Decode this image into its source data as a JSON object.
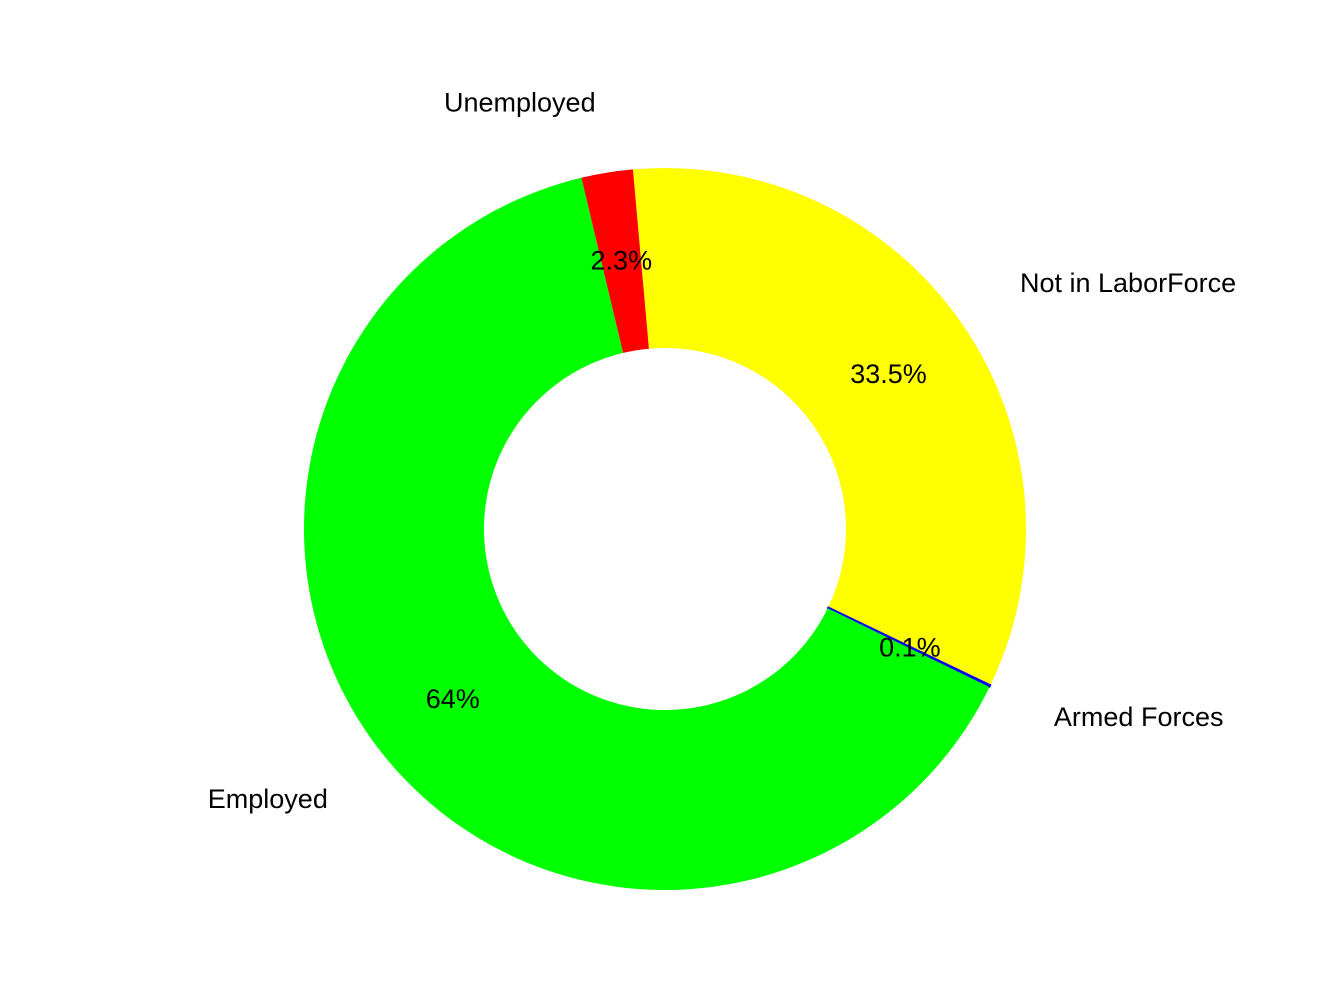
{
  "chart_data": {
    "type": "pie",
    "donut": true,
    "categories": [
      "Not in LaborForce",
      "Armed Forces",
      "Employed",
      "Unemployed"
    ],
    "values": [
      33.5,
      0.1,
      64,
      2.3
    ],
    "value_labels": [
      "33.5%",
      "0.1%",
      "64%",
      "2.3%"
    ],
    "colors": [
      "#ffff00",
      "#0000ff",
      "#00ff00",
      "#ff0000"
    ],
    "legend": "none"
  }
}
